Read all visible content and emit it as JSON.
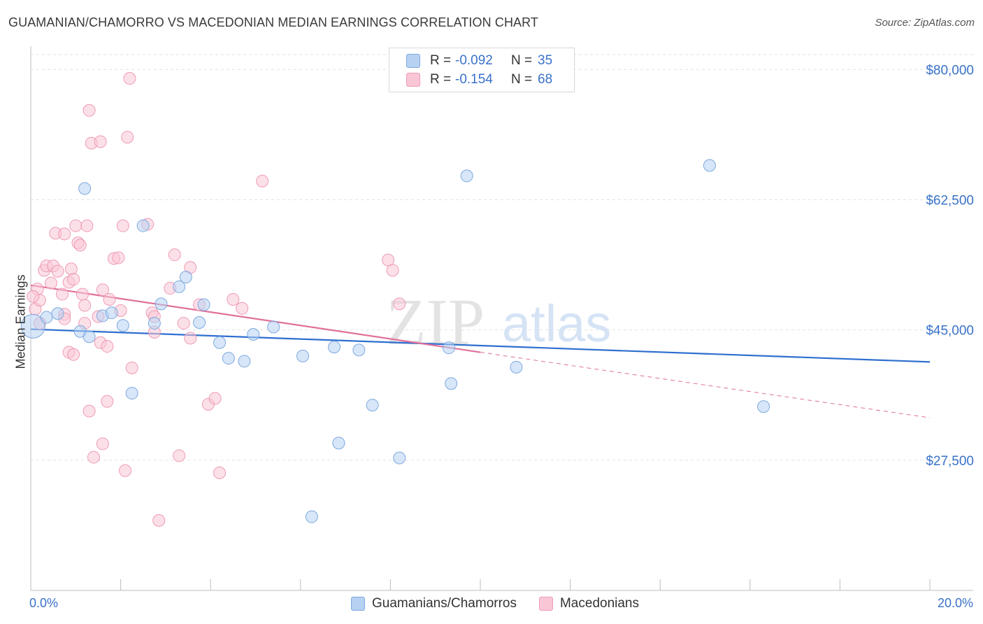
{
  "title": "GUAMANIAN/CHAMORRO VS MACEDONIAN MEDIAN EARNINGS CORRELATION CHART",
  "source": "Source: ZipAtlas.com",
  "watermark": {
    "zip": "ZIP",
    "atlas": "atlas"
  },
  "legend_top": {
    "row1": {
      "r_label": "R =",
      "r_value": "-0.092",
      "n_label": "N =",
      "n_value": "35"
    },
    "row2": {
      "r_label": "R =",
      "r_value": "-0.154",
      "n_label": "N =",
      "n_value": "68"
    }
  },
  "legend_bottom": [
    "Guamanians/Chamorros",
    "Macedonians"
  ],
  "colors": {
    "blue_fill": "#b7d1f2",
    "blue_stroke": "#7ea9df",
    "blue_line": "#2f6fcf",
    "pink_fill": "#f9c6d6",
    "pink_stroke": "#ee9bb5",
    "pink_line": "#e0709a",
    "axis_label": "#3a72c9",
    "grid": "#e2e2e2"
  },
  "chart_data": {
    "type": "scatter",
    "title": "GUAMANIAN/CHAMORRO VS MACEDONIAN MEDIAN EARNINGS CORRELATION CHART",
    "xlabel": "",
    "ylabel": "Median Earnings",
    "xlim": [
      0,
      20
    ],
    "ylim": [
      10000,
      82000
    ],
    "x_tick_labels": [
      "0.0%",
      "20.0%"
    ],
    "y_ticks": [
      27500,
      45000,
      62500,
      80000
    ],
    "y_tick_labels": [
      "$27,500",
      "$45,000",
      "$62,500",
      "$80,000"
    ],
    "series": [
      {
        "name": "Guamanians/Chamorros",
        "color": "blue",
        "points": [
          [
            0.05,
            45500
          ],
          [
            0.35,
            46700
          ],
          [
            0.6,
            47200
          ],
          [
            1.1,
            44800
          ],
          [
            1.3,
            44100
          ],
          [
            1.6,
            46900
          ],
          [
            1.8,
            47300
          ],
          [
            2.05,
            45600
          ],
          [
            2.25,
            36500
          ],
          [
            2.5,
            59000
          ],
          [
            2.75,
            45900
          ],
          [
            2.9,
            48500
          ],
          [
            3.3,
            50800
          ],
          [
            3.45,
            52100
          ],
          [
            3.75,
            46000
          ],
          [
            3.85,
            48400
          ],
          [
            4.2,
            43300
          ],
          [
            4.4,
            41200
          ],
          [
            4.75,
            40800
          ],
          [
            4.95,
            44400
          ],
          [
            5.4,
            45400
          ],
          [
            6.05,
            41500
          ],
          [
            6.25,
            19900
          ],
          [
            6.75,
            42700
          ],
          [
            6.85,
            29800
          ],
          [
            7.3,
            42300
          ],
          [
            7.6,
            34900
          ],
          [
            8.2,
            27800
          ],
          [
            9.3,
            42600
          ],
          [
            9.35,
            37800
          ],
          [
            9.7,
            65700
          ],
          [
            10.8,
            40000
          ],
          [
            15.1,
            67100
          ],
          [
            16.3,
            34700
          ],
          [
            1.2,
            64000
          ]
        ],
        "trend": {
          "x": [
            0,
            20
          ],
          "y": [
            45100,
            40700
          ]
        }
      },
      {
        "name": "Macedonians",
        "color": "pink",
        "points": [
          [
            0.1,
            47800
          ],
          [
            0.15,
            50500
          ],
          [
            0.2,
            49000
          ],
          [
            0.2,
            45900
          ],
          [
            0.3,
            53000
          ],
          [
            0.35,
            53600
          ],
          [
            0.45,
            51300
          ],
          [
            0.5,
            53600
          ],
          [
            0.6,
            52900
          ],
          [
            0.75,
            47100
          ],
          [
            0.55,
            58000
          ],
          [
            0.75,
            46500
          ],
          [
            0.7,
            49800
          ],
          [
            0.75,
            57900
          ],
          [
            0.85,
            51400
          ],
          [
            0.9,
            53200
          ],
          [
            0.95,
            51800
          ],
          [
            1.0,
            59000
          ],
          [
            0.85,
            42000
          ],
          [
            0.95,
            41700
          ],
          [
            1.15,
            49800
          ],
          [
            1.2,
            45900
          ],
          [
            1.05,
            56700
          ],
          [
            1.1,
            56400
          ],
          [
            1.25,
            59000
          ],
          [
            1.2,
            48300
          ],
          [
            1.3,
            34100
          ],
          [
            1.5,
            46800
          ],
          [
            1.35,
            70100
          ],
          [
            1.3,
            74500
          ],
          [
            1.55,
            43300
          ],
          [
            1.55,
            70300
          ],
          [
            1.6,
            50400
          ],
          [
            1.6,
            29700
          ],
          [
            1.75,
            49100
          ],
          [
            1.7,
            42800
          ],
          [
            1.7,
            35400
          ],
          [
            1.85,
            54600
          ],
          [
            1.95,
            54700
          ],
          [
            2.0,
            47600
          ],
          [
            2.1,
            26100
          ],
          [
            2.05,
            59000
          ],
          [
            2.15,
            70900
          ],
          [
            2.2,
            78800
          ],
          [
            2.25,
            39900
          ],
          [
            2.6,
            59200
          ],
          [
            2.7,
            47300
          ],
          [
            2.75,
            46800
          ],
          [
            2.75,
            44700
          ],
          [
            2.85,
            19400
          ],
          [
            3.1,
            50600
          ],
          [
            3.2,
            55100
          ],
          [
            3.4,
            45900
          ],
          [
            3.55,
            43900
          ],
          [
            3.55,
            53400
          ],
          [
            3.75,
            48400
          ],
          [
            3.95,
            35000
          ],
          [
            4.1,
            35800
          ],
          [
            4.2,
            25800
          ],
          [
            4.5,
            49100
          ],
          [
            4.7,
            47900
          ],
          [
            1.4,
            27900
          ],
          [
            3.3,
            28100
          ],
          [
            7.95,
            54400
          ],
          [
            8.05,
            53000
          ],
          [
            8.2,
            48500
          ],
          [
            5.15,
            65000
          ],
          [
            0.05,
            49500
          ]
        ],
        "trend": {
          "x": [
            0,
            10
          ],
          "y": [
            51000,
            42000
          ]
        },
        "trend_extension": {
          "x": [
            10,
            20
          ],
          "y": [
            42000,
            33200
          ]
        }
      }
    ]
  }
}
